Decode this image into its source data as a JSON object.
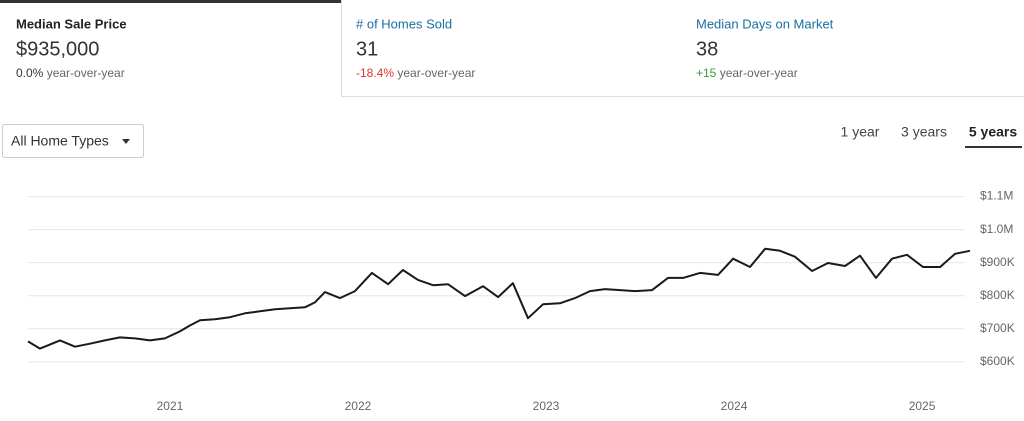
{
  "metrics": [
    {
      "title": "Median Sale Price",
      "value": "$935,000",
      "change": "0.0%",
      "change_label": "year-over-year"
    },
    {
      "title": "# of Homes Sold",
      "value": "31",
      "change": "-18.4%",
      "change_label": "year-over-year"
    },
    {
      "title": "Median Days on Market",
      "value": "38",
      "change": "+15",
      "change_label": "year-over-year"
    }
  ],
  "filter": {
    "label": "All Home Types"
  },
  "range_options": [
    "1 year",
    "3 years",
    "5 years"
  ],
  "selected_range": 2,
  "chart_data": {
    "type": "line",
    "x": [
      2020.245,
      2020.309,
      2020.415,
      2020.495,
      2020.574,
      2020.654,
      2020.734,
      2020.814,
      2020.894,
      2020.973,
      2021.053,
      2021.106,
      2021.16,
      2021.239,
      2021.319,
      2021.399,
      2021.479,
      2021.559,
      2021.638,
      2021.718,
      2021.771,
      2021.824,
      2021.904,
      2021.984,
      2022.074,
      2022.16,
      2022.239,
      2022.319,
      2022.399,
      2022.479,
      2022.569,
      2022.665,
      2022.745,
      2022.824,
      2022.904,
      2022.984,
      2023.074,
      2023.154,
      2023.234,
      2023.314,
      2023.394,
      2023.473,
      2023.564,
      2023.649,
      2023.729,
      2023.819,
      2023.915,
      2023.995,
      2024.085,
      2024.165,
      2024.245,
      2024.324,
      2024.415,
      2024.5,
      2024.59,
      2024.67,
      2024.755,
      2024.84,
      2024.92,
      2025.005,
      2025.096,
      2025.176,
      2025.255
    ],
    "series": [
      {
        "name": "Median Sale Price",
        "color": "#1a1a1a",
        "values": [
          662000,
          640000,
          665000,
          646000,
          655000,
          665000,
          674000,
          671000,
          665000,
          671000,
          692000,
          710000,
          726000,
          729000,
          735000,
          747000,
          753000,
          759000,
          762000,
          765000,
          780000,
          811000,
          793000,
          814000,
          869000,
          835000,
          878000,
          848000,
          832000,
          835000,
          799000,
          829000,
          796000,
          838000,
          732000,
          774000,
          777000,
          793000,
          814000,
          820000,
          817000,
          814000,
          817000,
          854000,
          854000,
          869000,
          863000,
          912000,
          887000,
          942000,
          936000,
          918000,
          875000,
          899000,
          890000,
          921000,
          854000,
          912000,
          924000,
          887000,
          887000,
          927000,
          936000
        ]
      }
    ],
    "xlim": [
      2020.245,
      2025.255
    ],
    "xticks": [
      2021,
      2022,
      2023,
      2024,
      2025
    ],
    "ylim": [
      530000,
      1135000
    ],
    "yticks": [
      {
        "value": 600000,
        "label": "$600K"
      },
      {
        "value": 700000,
        "label": "$700K"
      },
      {
        "value": 800000,
        "label": "$800K"
      },
      {
        "value": 900000,
        "label": "$900K"
      },
      {
        "value": 1000000,
        "label": "$1.0M"
      },
      {
        "value": 1100000,
        "label": "$1.1M"
      }
    ],
    "grid": true
  }
}
